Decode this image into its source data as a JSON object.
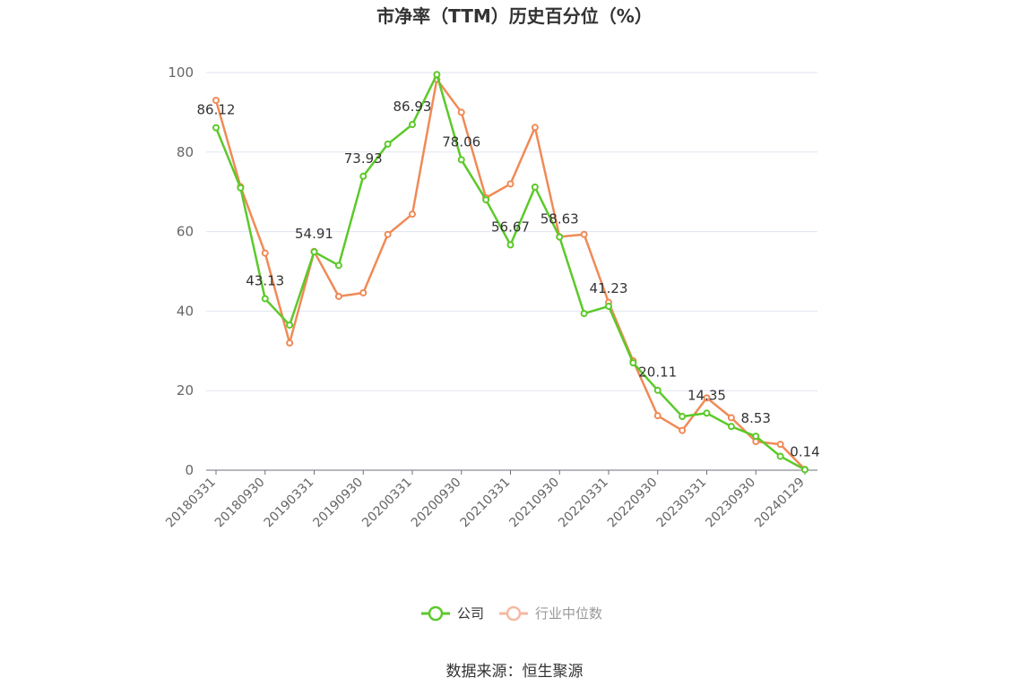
{
  "chart_data": {
    "type": "line",
    "title": "市净率（TTM）历史百分位（%）",
    "x": [
      "20180331",
      "20180630",
      "20180930",
      "20181231",
      "20190331",
      "20190630",
      "20190930",
      "20191231",
      "20200331",
      "20200630",
      "20200930",
      "20201231",
      "20210331",
      "20210630",
      "20210930",
      "20211231",
      "20220331",
      "20220630",
      "20220930",
      "20221231",
      "20230331",
      "20230630",
      "20230930",
      "20231231",
      "20240129"
    ],
    "x_tick_labels": [
      "20180331",
      "20180930",
      "20190331",
      "20190930",
      "20200331",
      "20200930",
      "20210331",
      "20210930",
      "20220331",
      "20220930",
      "20230331",
      "20230930",
      "20240129"
    ],
    "ylim": [
      0,
      100
    ],
    "y_ticks": [
      "0",
      "20",
      "40",
      "60",
      "80",
      "100"
    ],
    "grid": true,
    "legend_position": "bottom",
    "series": [
      {
        "name": "公司",
        "color": "#5cc92a",
        "values": [
          86.12,
          71,
          43.13,
          36.5,
          54.91,
          51.5,
          73.93,
          82,
          86.93,
          99.5,
          78.06,
          68,
          56.67,
          71.2,
          58.63,
          39.4,
          41.23,
          27,
          20.11,
          13.5,
          14.35,
          11,
          8.53,
          3.5,
          0.14
        ],
        "labels": [
          "86.12",
          "",
          "43.13",
          "",
          "54.91",
          "",
          "73.93",
          "",
          "86.93",
          "",
          "78.06",
          "",
          "56.67",
          "",
          "58.63",
          "",
          "41.23",
          "",
          "20.11",
          "",
          "14.35",
          "",
          "8.53",
          "",
          "0.14"
        ]
      },
      {
        "name": "行业中位数",
        "color": "#f08a56",
        "values": [
          93,
          71.3,
          54.6,
          32,
          55,
          43.7,
          44.6,
          59.3,
          64.4,
          98.3,
          90,
          68.5,
          72,
          86.2,
          58.7,
          59.3,
          42.2,
          27.5,
          13.7,
          10,
          18.2,
          13.2,
          7.2,
          6.5,
          0.2
        ]
      }
    ],
    "source_text": "数据来源：恒生聚源"
  }
}
